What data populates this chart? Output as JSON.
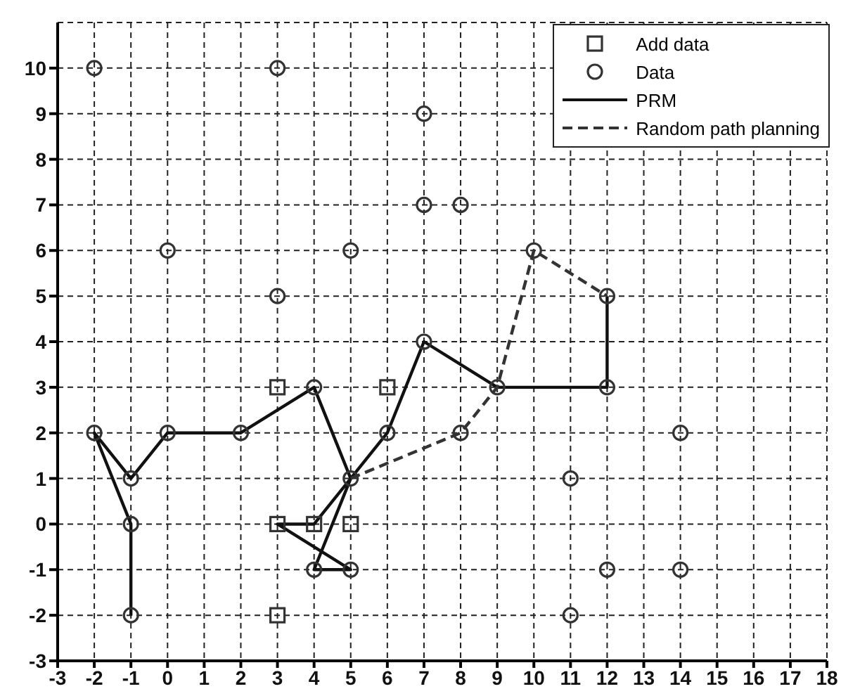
{
  "chart_data": {
    "type": "scatter",
    "xlim": [
      -3,
      18
    ],
    "ylim": [
      -3,
      11
    ],
    "xticks": [
      -3,
      -2,
      -1,
      0,
      1,
      2,
      3,
      4,
      5,
      6,
      7,
      8,
      9,
      10,
      11,
      12,
      13,
      14,
      15,
      16,
      17,
      18
    ],
    "yticks": [
      -3,
      -2,
      -1,
      0,
      1,
      2,
      3,
      4,
      5,
      6,
      7,
      8,
      9,
      10
    ],
    "grid": true,
    "legend": "top right",
    "series": [
      {
        "name": "Add data",
        "marker": "square",
        "color": "#333333",
        "x": [
          3,
          6,
          3,
          4,
          5,
          3
        ],
        "values": [
          3,
          3,
          0,
          0,
          0,
          -2
        ]
      },
      {
        "name": "Data",
        "marker": "circle",
        "color": "#333333",
        "x": [
          -2,
          3,
          7,
          7,
          8,
          0,
          5,
          3,
          7,
          10,
          12,
          4,
          -2,
          0,
          2,
          6,
          -1,
          5,
          9,
          12,
          8,
          14,
          11,
          -1,
          4,
          5,
          12,
          14,
          11,
          -1
        ],
        "values": [
          10,
          10,
          9,
          7,
          7,
          6,
          6,
          5,
          4,
          6,
          5,
          3,
          2,
          2,
          2,
          2,
          1,
          1,
          3,
          3,
          2,
          2,
          1,
          0,
          -1,
          -1,
          -1,
          -1,
          -2,
          -2
        ]
      },
      {
        "name": "PRM",
        "type": "line",
        "marker": "none",
        "line_style": "solid",
        "color": "#111111",
        "x": [
          -1,
          -1,
          -2,
          -1,
          0,
          2,
          4,
          5,
          4,
          5,
          3,
          4,
          5,
          6,
          7,
          9,
          12,
          12
        ],
        "values": [
          -2,
          0,
          2,
          1,
          2,
          2,
          3,
          1,
          -1,
          -1,
          0,
          0,
          1,
          2,
          4,
          3,
          3,
          5
        ]
      },
      {
        "name": "Random path planning",
        "type": "line",
        "marker": "none",
        "line_style": "dashed",
        "color": "#333333",
        "x": [
          5,
          8,
          9,
          10,
          12
        ],
        "values": [
          1,
          2,
          3,
          6,
          5
        ]
      }
    ]
  }
}
